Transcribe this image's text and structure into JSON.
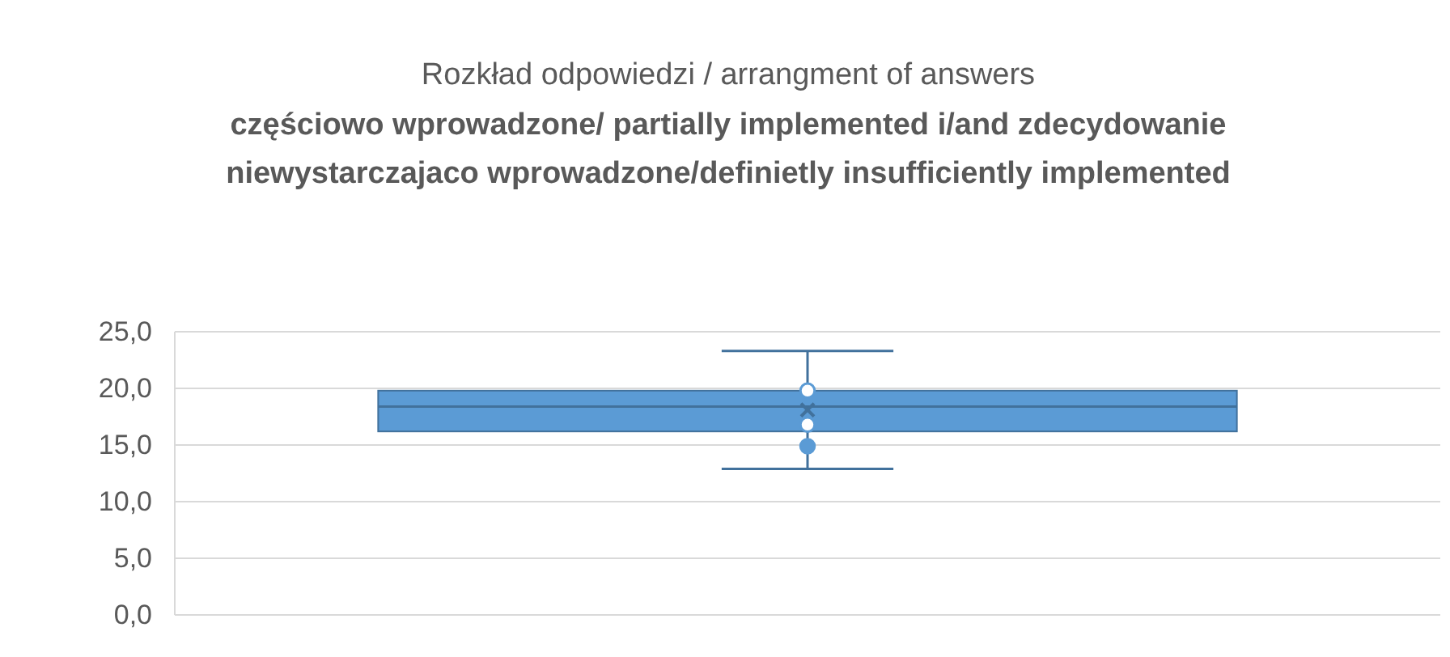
{
  "chart_data": {
    "type": "box",
    "title": "Rozkład odpowiedzi / arrangment of answers",
    "subtitle": "częściowo wprowadzone/ partially implemented i/and zdecydowanie niewystarczajaco wprowadzone/definietly insufficiently implemented",
    "categories": [
      null
    ],
    "color": "#5b9bd5",
    "boxes": [
      {
        "low": 12.9,
        "q1": 16.2,
        "median": 18.4,
        "q3": 19.8,
        "high": 23.3,
        "mean": 18.1
      }
    ],
    "series": [
      {
        "type": "scatter",
        "color": "#5b9bd5",
        "x": [
          null,
          null,
          null
        ],
        "values": [
          19.8,
          16.8,
          14.9
        ]
      }
    ],
    "marker": "circle",
    "ylim": [
      0,
      25
    ],
    "yticks": [
      {
        "value": 0,
        "label": "0,0"
      },
      {
        "value": 5,
        "label": "5,0"
      },
      {
        "value": 10,
        "label": "10,0"
      },
      {
        "value": 15,
        "label": "15,0"
      },
      {
        "value": 20,
        "label": "20,0"
      },
      {
        "value": 25,
        "label": "25,0"
      }
    ],
    "grid": "y"
  }
}
